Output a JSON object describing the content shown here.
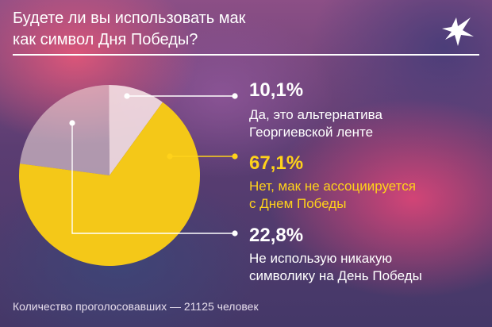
{
  "header": {
    "title_line1": "Будете ли вы использовать мак",
    "title_line2": "как символ Дня Победы?"
  },
  "footer": {
    "text": "Количество проголосовавших — 21125 человек"
  },
  "logo": {
    "icon": "bird-icon"
  },
  "colors": {
    "pie_light": "#f3dde2",
    "pie_yellow": "#f4c818",
    "pie_pale": "#f7e3e0",
    "label_yellow": "#ffd21a",
    "label_white": "#ffffff"
  },
  "chart_data": {
    "type": "pie",
    "slices": [
      {
        "percent_label": "10,1%",
        "value": 10.1,
        "label_line1": "Да, это альтернатива",
        "label_line2": "Георгиевской ленте"
      },
      {
        "percent_label": "67,1%",
        "value": 67.1,
        "label_line1": "Нет, мак не ассоциируется",
        "label_line2": "с Днем Победы"
      },
      {
        "percent_label": "22,8%",
        "value": 22.8,
        "label_line1": "Не использую никакую",
        "label_line2": "символику на День Победы"
      }
    ]
  }
}
